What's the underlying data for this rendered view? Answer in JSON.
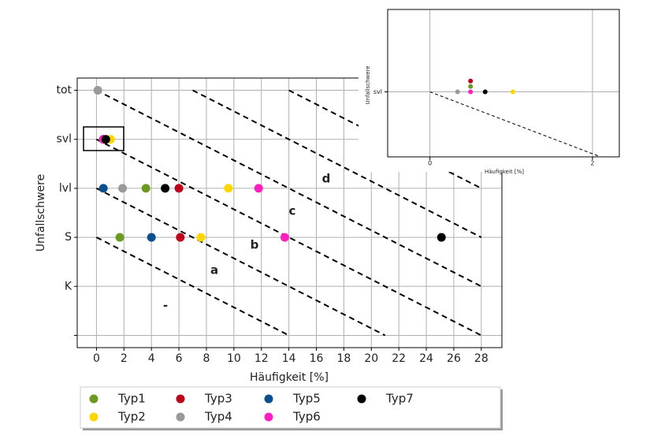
{
  "chart_data": [
    {
      "type": "scatter",
      "xlabel": "Häufigkeit [%]",
      "ylabel": "Unfallschwere",
      "xlim": [
        -1.4,
        29.5
      ],
      "ylim": [
        -0.25,
        5.25
      ],
      "xticks": [
        0,
        2,
        4,
        6,
        8,
        10,
        12,
        14,
        16,
        18,
        20,
        22,
        24,
        26,
        28
      ],
      "yticks": [
        {
          "value": 0,
          "label": null
        },
        {
          "value": 1,
          "label": "K"
        },
        {
          "value": 2,
          "label": "S"
        },
        {
          "value": 3,
          "label": "lvl"
        },
        {
          "value": 4,
          "label": "svl"
        },
        {
          "value": 5,
          "label": "tot"
        }
      ],
      "grid": true,
      "legend": "below",
      "lines": [
        {
          "color": "#000000",
          "x": [
            0,
            14
          ],
          "y": [
            2,
            0
          ]
        },
        {
          "color": "#000000",
          "x": [
            0,
            21
          ],
          "y": [
            3,
            0
          ]
        },
        {
          "color": "#000000",
          "x": [
            0,
            28
          ],
          "y": [
            4,
            0
          ]
        },
        {
          "color": "#000000",
          "x": [
            0,
            28
          ],
          "y": [
            5,
            1
          ]
        },
        {
          "color": "#000000",
          "x": [
            7,
            28
          ],
          "y": [
            5,
            2
          ]
        },
        {
          "color": "#000000",
          "x": [
            14,
            28
          ],
          "y": [
            5,
            3
          ]
        }
      ],
      "annotations": [
        "-",
        "a",
        "b",
        "c",
        "d"
      ],
      "series": [
        {
          "name": "Typ1",
          "color": "#6a9a1f",
          "x": [
            0.5,
            3.6,
            1.7
          ],
          "y": [
            4,
            3,
            2
          ]
        },
        {
          "name": "Typ2",
          "color": "#ffd700",
          "x": [
            1.02,
            9.6,
            7.6
          ],
          "y": [
            4,
            3,
            2
          ]
        },
        {
          "name": "Typ3",
          "color": "#c0001a",
          "x": [
            0.5,
            6.0,
            6.1
          ],
          "y": [
            4,
            3,
            2
          ]
        },
        {
          "name": "Typ4",
          "color": "#999999",
          "x": [
            0.1,
            1.9
          ],
          "y": [
            5,
            3
          ]
        },
        {
          "name": "Typ5",
          "color": "#0a4f8f",
          "x": [
            0.5,
            4.0
          ],
          "y": [
            3,
            2
          ]
        },
        {
          "name": "Typ6",
          "color": "#ff1fbf",
          "x": [
            0.5,
            11.8,
            13.7
          ],
          "y": [
            4,
            3,
            2
          ]
        },
        {
          "name": "Typ7",
          "color": "#000000",
          "x": [
            0.68,
            5.0,
            25.1
          ],
          "y": [
            4,
            3,
            2
          ]
        }
      ]
    },
    {
      "type": "scatter",
      "xlabel": "Häufigkeit [%]",
      "ylabel": "Unfallschwere",
      "xlim": [
        -0.52,
        2.33
      ],
      "ylim": [
        3.7,
        4.38
      ],
      "xticks": [
        0,
        2
      ],
      "yticks": [
        {
          "value": 4,
          "label": "svl"
        }
      ],
      "grid": true,
      "lines": [
        {
          "color": "#000000",
          "x": [
            0,
            2.1
          ],
          "y": [
            4,
            3.7
          ]
        }
      ],
      "series": [
        {
          "color": "#6a9a1f",
          "x": [
            0.5
          ],
          "y": [
            4.025
          ]
        },
        {
          "color": "#ffd700",
          "x": [
            1.02
          ],
          "y": [
            4
          ]
        },
        {
          "color": "#c0001a",
          "x": [
            0.5
          ],
          "y": [
            4.05
          ]
        },
        {
          "color": "#999999",
          "x": [
            0.34
          ],
          "y": [
            4
          ]
        },
        {
          "color": "#ff1fbf",
          "x": [
            0.5
          ],
          "y": [
            4
          ]
        },
        {
          "color": "#000000",
          "x": [
            0.68
          ],
          "y": [
            4
          ]
        }
      ]
    }
  ]
}
